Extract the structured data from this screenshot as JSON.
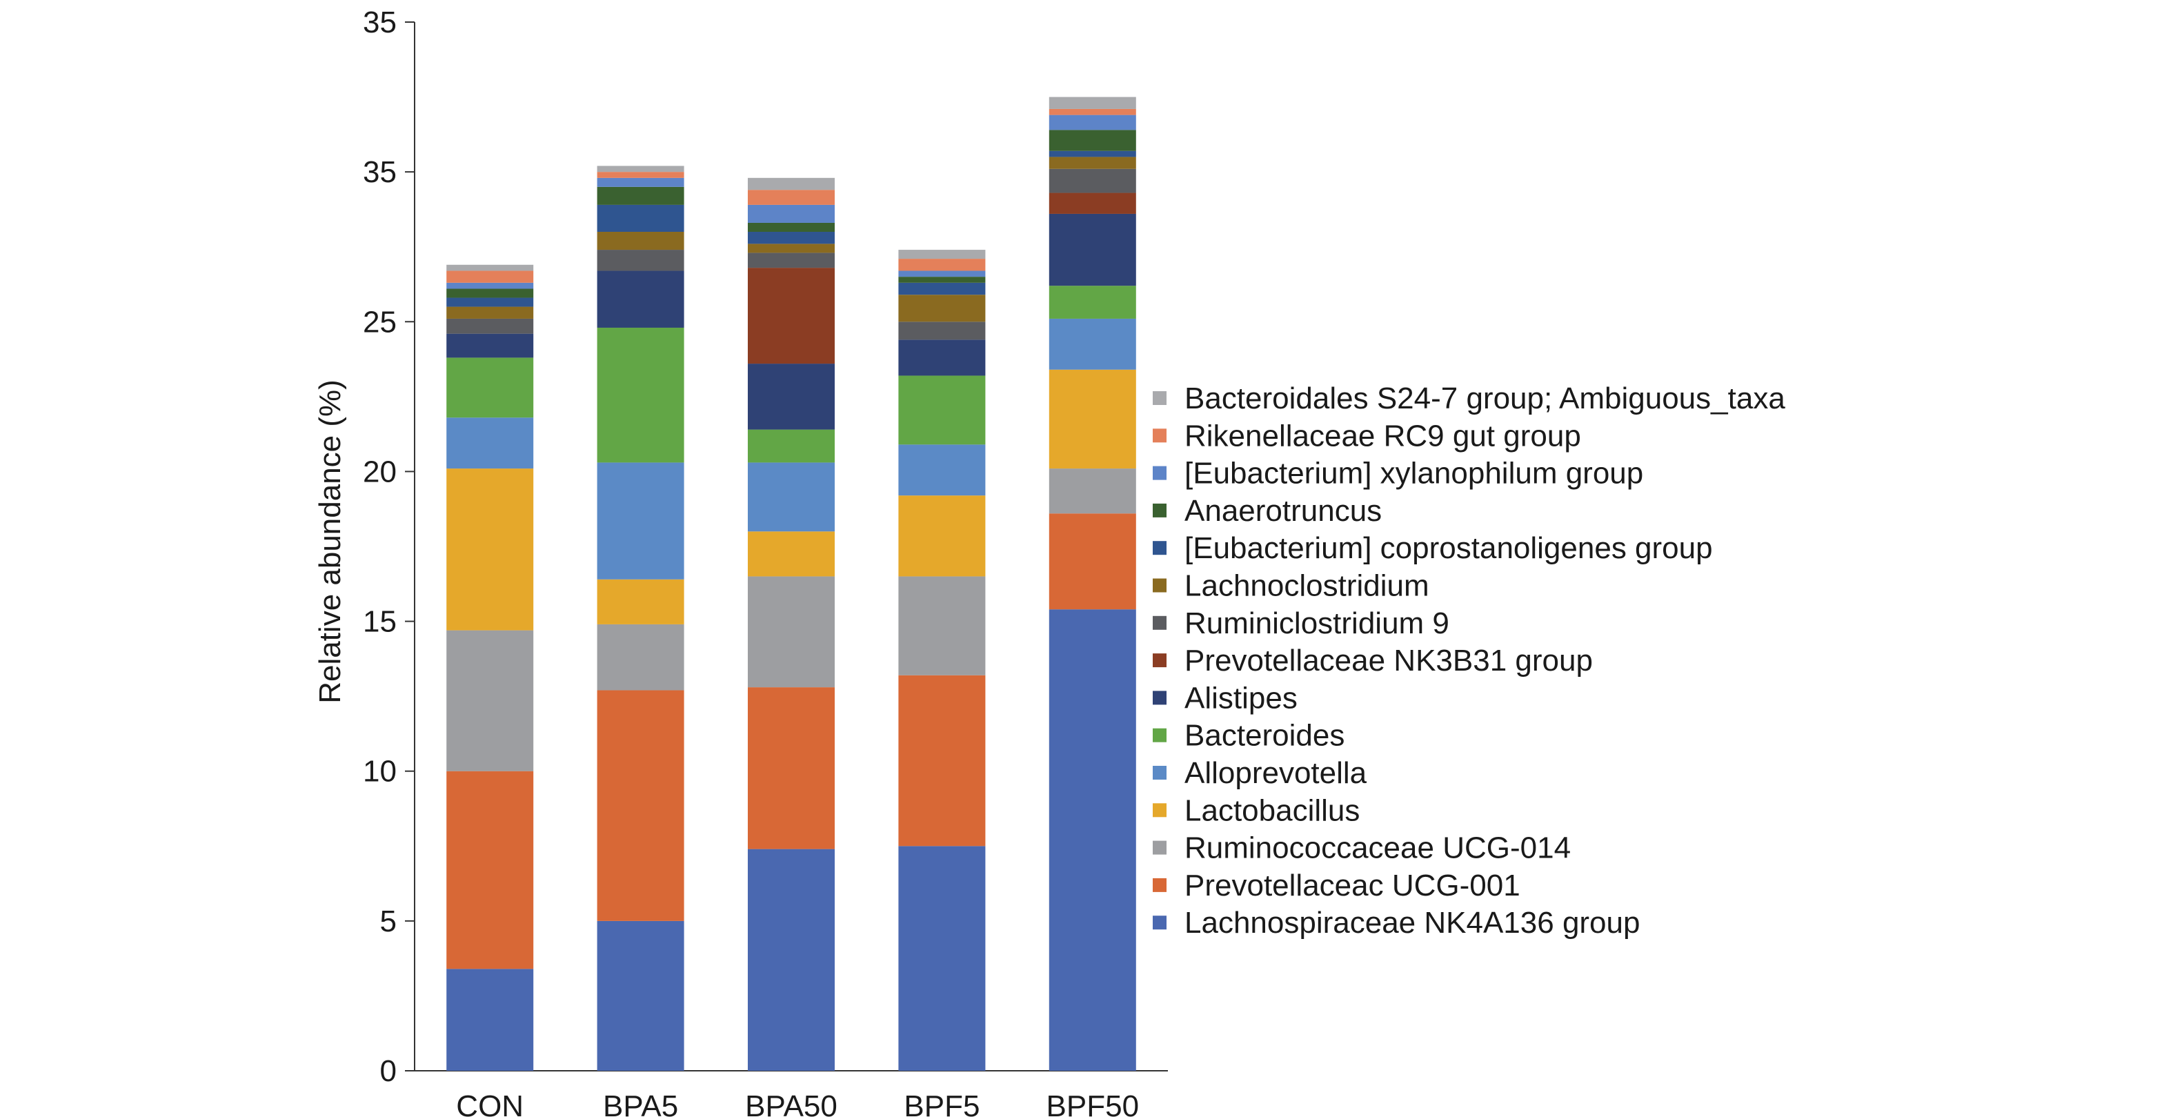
{
  "chart_data": {
    "type": "bar",
    "stacked": true,
    "categories": [
      "CON",
      "BPA5",
      "BPA50",
      "BPF5",
      "BPF50"
    ],
    "ylabel": "Relative abundance (%)",
    "xlabel": "",
    "title": "",
    "ylim": [
      0,
      35
    ],
    "y_tick_labels": [
      "0",
      "5",
      "10",
      "15",
      "20",
      "25",
      "35",
      "35"
    ],
    "grid": false,
    "legend_position": "right",
    "series": [
      {
        "name": "Lachnospiraceae NK4A136 group",
        "color": "#4a68b0",
        "values": [
          3.4,
          5.0,
          7.4,
          7.5,
          15.4
        ]
      },
      {
        "name": "Prevotellaceac UCG-001",
        "color": "#d86836",
        "values": [
          6.6,
          7.7,
          5.4,
          5.7,
          3.2
        ]
      },
      {
        "name": "Ruminococcaceae UCG-014",
        "color": "#9d9ea1",
        "values": [
          4.7,
          2.2,
          3.7,
          3.3,
          1.5
        ]
      },
      {
        "name": "Lactobacillus",
        "color": "#e5a82b",
        "values": [
          5.4,
          1.5,
          1.5,
          2.7,
          3.3
        ]
      },
      {
        "name": "Alloprevotella",
        "color": "#5b8ac6",
        "values": [
          1.7,
          3.9,
          2.3,
          1.7,
          1.7
        ]
      },
      {
        "name": "Bacteroides",
        "color": "#62a646",
        "values": [
          2.0,
          4.5,
          1.1,
          2.3,
          1.1
        ]
      },
      {
        "name": "Alistipes",
        "color": "#2f4275",
        "values": [
          0.8,
          1.9,
          2.2,
          1.2,
          2.4
        ]
      },
      {
        "name": "Prevotellaceae NK3B31 group",
        "color": "#8b3d23",
        "values": [
          0.0,
          0.0,
          3.2,
          0.0,
          0.7
        ]
      },
      {
        "name": "Ruminiclostridium 9",
        "color": "#5b5c60",
        "values": [
          0.5,
          0.7,
          0.5,
          0.6,
          0.8
        ]
      },
      {
        "name": "Lachnoclostridium",
        "color": "#8a6a20",
        "values": [
          0.4,
          0.6,
          0.3,
          0.9,
          0.4
        ]
      },
      {
        "name": "[Eubacterium] coprostanoligenes group",
        "color": "#2f5590",
        "values": [
          0.3,
          0.9,
          0.4,
          0.4,
          0.2
        ]
      },
      {
        "name": "Anaerotruncus",
        "color": "#3a6130",
        "values": [
          0.3,
          0.6,
          0.3,
          0.2,
          0.7
        ]
      },
      {
        "name": "[Eubacterium] xylanophilum group",
        "color": "#5d84c8",
        "values": [
          0.2,
          0.3,
          0.6,
          0.2,
          0.5
        ]
      },
      {
        "name": "Rikenellaceae RC9 gut group",
        "color": "#e4805a",
        "values": [
          0.4,
          0.2,
          0.5,
          0.4,
          0.2
        ]
      },
      {
        "name": "Bacteroidales S24-7 group; Ambiguous_taxa",
        "color": "#a9aaad",
        "values": [
          0.2,
          0.2,
          0.4,
          0.3,
          0.4
        ]
      }
    ]
  }
}
